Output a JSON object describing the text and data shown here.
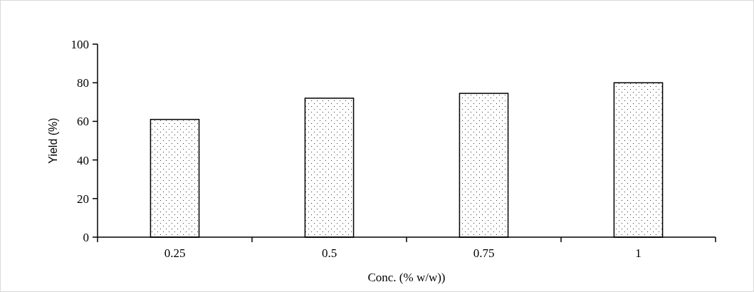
{
  "chart_data": {
    "type": "bar",
    "xlabel": "Conc. (% w/w))",
    "ylabel": "Yield (%)",
    "categories": [
      "0.25",
      "0.5",
      "0.75",
      "1"
    ],
    "values": [
      61,
      72,
      74.5,
      80
    ],
    "color": "#ffffff",
    "ylim": [
      0,
      100
    ],
    "yticks": [
      0,
      20,
      40,
      60,
      80,
      100
    ],
    "grid": false
  }
}
